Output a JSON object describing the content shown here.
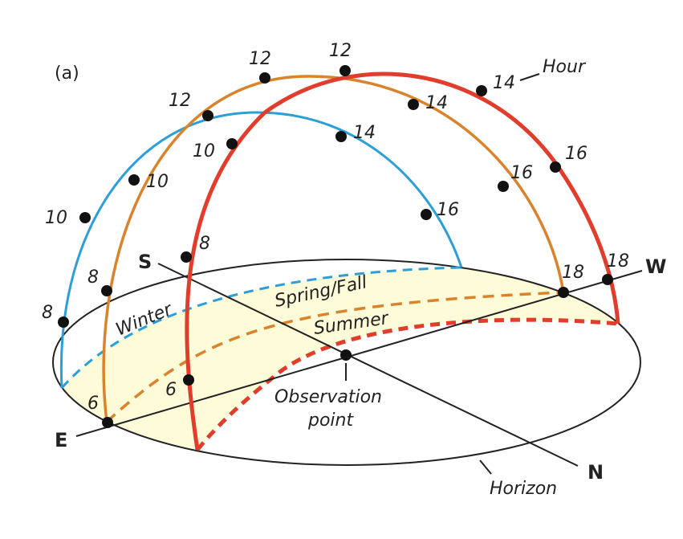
{
  "panel_label": "(a)",
  "directions": {
    "south": "S",
    "north": "N",
    "east": "E",
    "west": "W"
  },
  "labels": {
    "hour": "Hour",
    "winter": "Winter",
    "spring_fall": "Spring/Fall",
    "summer": "Summer",
    "observation_line1": "Observation",
    "observation_line2": "point",
    "horizon": "Horizon"
  },
  "colors": {
    "winter": "#2b9fd6",
    "spring_fall": "#d9832c",
    "summer": "#e03d2c",
    "daytime_fill": "#fdfbd8"
  },
  "paths": {
    "winter": {
      "hours": [
        "8",
        "10",
        "12",
        "14",
        "16"
      ]
    },
    "spring_fall": {
      "hours": [
        "6",
        "8",
        "10",
        "12",
        "14",
        "16",
        "18"
      ]
    },
    "summer": {
      "hours": [
        "6",
        "8",
        "10",
        "12",
        "14",
        "16",
        "18"
      ]
    }
  }
}
